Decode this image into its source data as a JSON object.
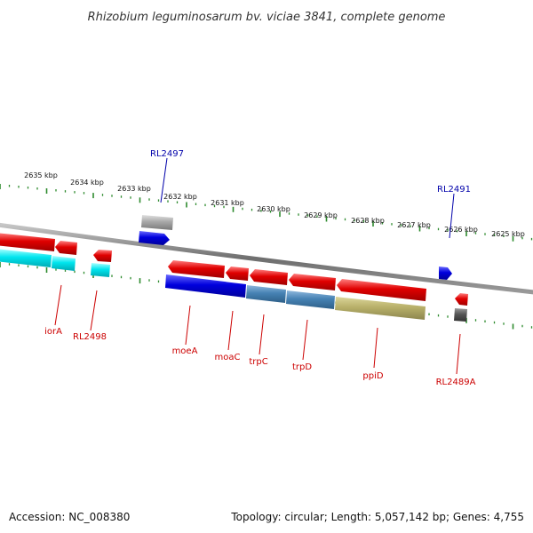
{
  "title": "Rhizobium leguminosarum bv. viciae 3841, complete genome",
  "footer": {
    "accession": "Accession: NC_008380",
    "summary": "Topology: circular; Length: 5,057,142 bp; Genes: 4,755"
  },
  "colors": {
    "backbone": "#7a7a7a",
    "tick": "#2e8b2e",
    "label_red": "#cc0000",
    "label_blue": "#0000aa",
    "gene_red": "#e00000",
    "gene_blue": "#0000dd",
    "gene_cyan": "#00e5ee",
    "gene_steel": "#4682b4",
    "gene_khaki": "#b8b06a",
    "gene_gray": "#9a9a9a",
    "gene_dark": "#555555"
  },
  "ruler_labels": [
    "2635 kbp",
    "2634 kbp",
    "2633 kbp",
    "2632 kbp",
    "2631 kbp",
    "2630 kbp",
    "2629 kbp",
    "2628 kbp",
    "2627 kbp",
    "2626 kbp",
    "2625 kbp"
  ],
  "gene_labels": [
    {
      "name": "RL2497",
      "color": "blue"
    },
    {
      "name": "RL2491",
      "color": "blue"
    },
    {
      "name": "iorA",
      "color": "red"
    },
    {
      "name": "RL2498",
      "color": "red"
    },
    {
      "name": "moeA",
      "color": "red"
    },
    {
      "name": "moaC",
      "color": "red"
    },
    {
      "name": "trpC",
      "color": "red"
    },
    {
      "name": "trpD",
      "color": "red"
    },
    {
      "name": "ppiD",
      "color": "red"
    },
    {
      "name": "RL2489A",
      "color": "red"
    }
  ]
}
